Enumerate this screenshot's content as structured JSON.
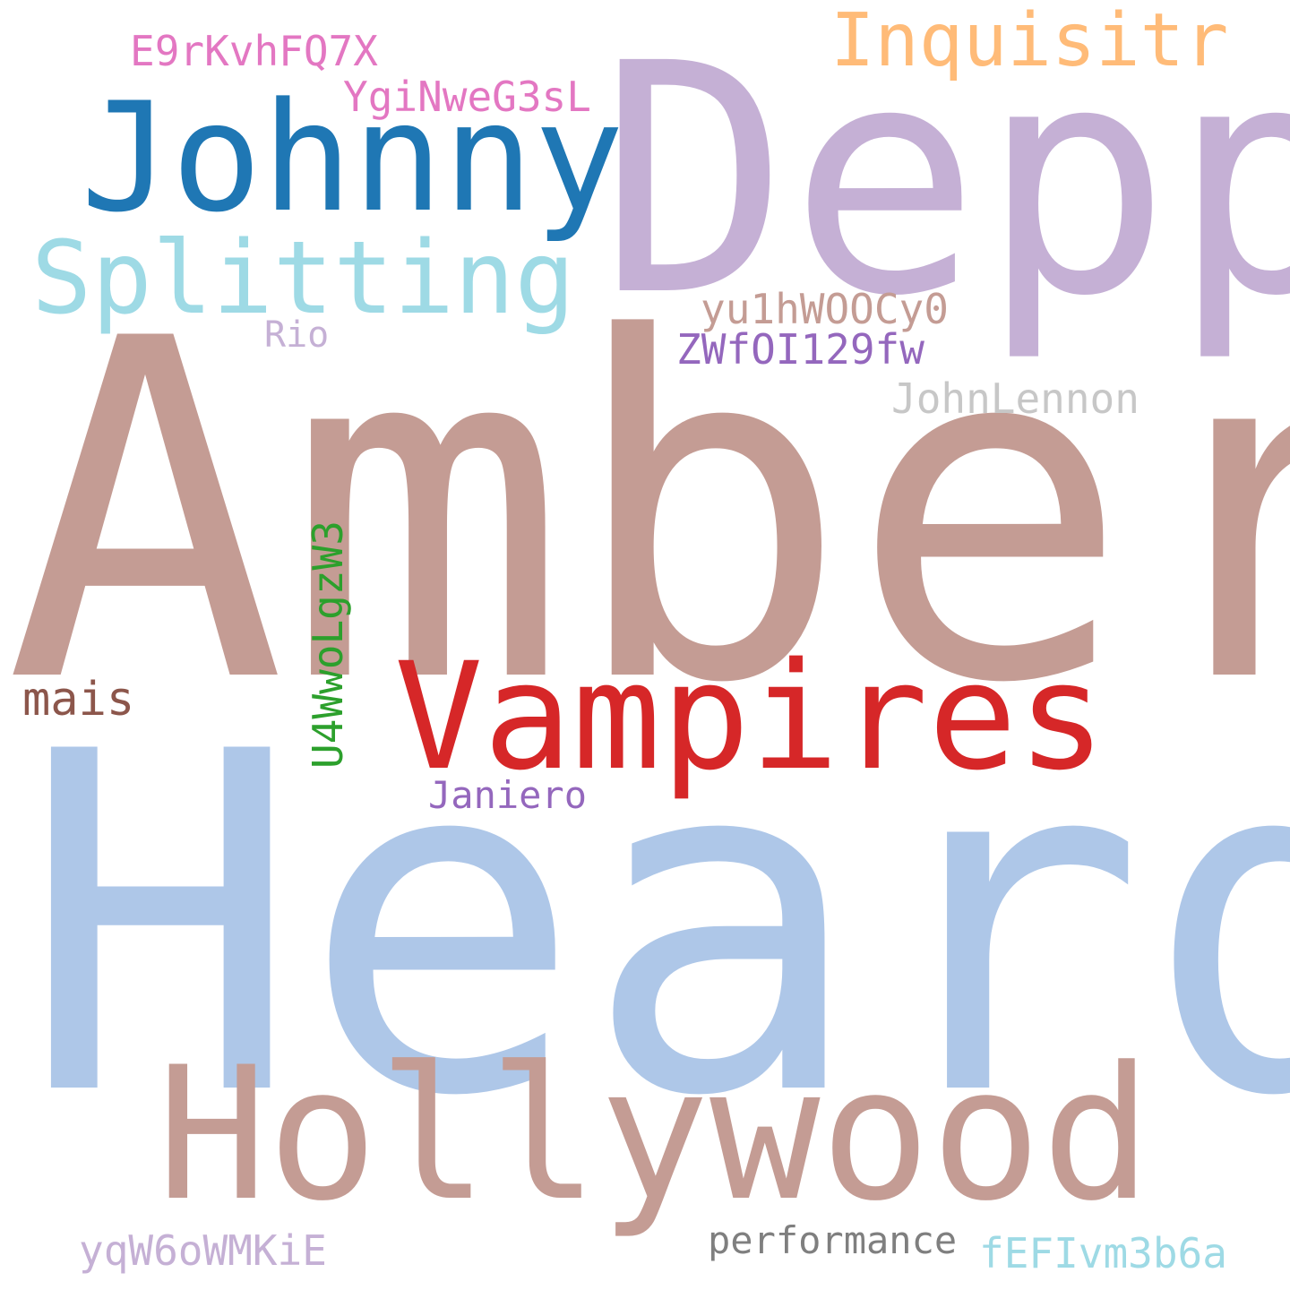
{
  "words": [
    {
      "id": "amber",
      "text": "Amber",
      "color": "#c49c94"
    },
    {
      "id": "heard",
      "text": "Heard",
      "color": "#aec7e8"
    },
    {
      "id": "depp",
      "text": "Depp",
      "color": "#c5b0d5"
    },
    {
      "id": "johnny",
      "text": "Johnny",
      "color": "#1f77b4"
    },
    {
      "id": "hollywood",
      "text": "Hollywood",
      "color": "#c49c94"
    },
    {
      "id": "vampires",
      "text": "Vampires",
      "color": "#d62728"
    },
    {
      "id": "splitting",
      "text": "Splitting",
      "color": "#9edae5"
    },
    {
      "id": "inquisitr",
      "text": "Inquisitr",
      "color": "#ffbb78"
    },
    {
      "id": "e9rkvhfq7x",
      "text": "E9rKvhFQ7X",
      "color": "#e377c2"
    },
    {
      "id": "yginweg3sl",
      "text": "YgiNweG3sL",
      "color": "#e377c2"
    },
    {
      "id": "yu1hwoocy0",
      "text": "yu1hWOOCy0",
      "color": "#c49c94"
    },
    {
      "id": "zwfoi129fw",
      "text": "ZWfOI129fw",
      "color": "#9467bd"
    },
    {
      "id": "rio",
      "text": "Rio",
      "color": "#c5b0d5"
    },
    {
      "id": "johnlennon",
      "text": "JohnLennon",
      "color": "#c7c7c7"
    },
    {
      "id": "mais",
      "text": "mais",
      "color": "#8c564b"
    },
    {
      "id": "janiero",
      "text": "Janiero",
      "color": "#9467bd"
    },
    {
      "id": "performance",
      "text": "performance",
      "color": "#7f7f7f"
    },
    {
      "id": "fefivm3b6a",
      "text": "fEFIvm3b6a",
      "color": "#9edae5"
    },
    {
      "id": "yqw6owmkie",
      "text": "yqW6oWMKiE",
      "color": "#c5b0d5"
    },
    {
      "id": "u4wwolgzw3",
      "text": "U4WwoLgzW3",
      "color": "#2ca02c"
    }
  ]
}
